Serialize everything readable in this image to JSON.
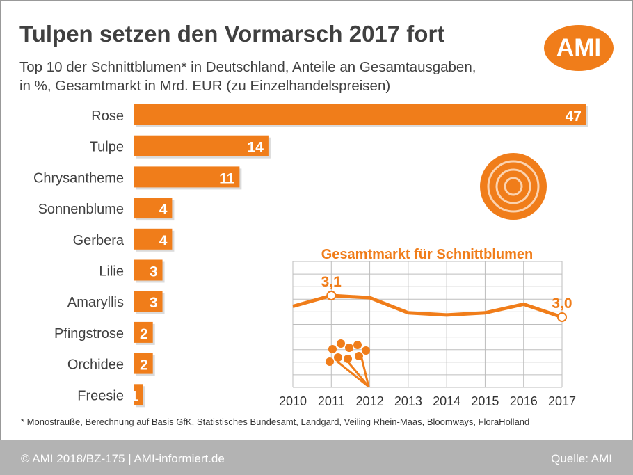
{
  "title": "Tulpen setzen den Vormarsch 2017 fort",
  "subtitle_line1": "Top 10 der Schnittblumen* in Deutschland, Anteile an Gesamtausgaben,",
  "subtitle_line2": "in %, Gesamtmarkt in Mrd. EUR (zu Einzelhandelspreisen)",
  "logo": "AMI",
  "colors": {
    "accent": "#f07d1a",
    "grid": "#bdbdbd",
    "text": "#404040"
  },
  "chart_data": [
    {
      "type": "bar",
      "orientation": "horizontal",
      "categories": [
        "Rose",
        "Tulpe",
        "Chrysantheme",
        "Sonnenblume",
        "Gerbera",
        "Lilie",
        "Amaryllis",
        "Pfingstrose",
        "Orchidee",
        "Freesie"
      ],
      "values": [
        47,
        14,
        11,
        4,
        4,
        3,
        3,
        2,
        2,
        1
      ],
      "data_labels": [
        "47",
        "14",
        "11",
        "4",
        "4",
        "3",
        "3",
        "2",
        "2",
        "1"
      ]
    },
    {
      "type": "line",
      "title": "Gesamtmarkt für Schnittblumen",
      "x": [
        "2010",
        "2011",
        "2012",
        "2013",
        "2014",
        "2015",
        "2016",
        "2017"
      ],
      "values": [
        3.05,
        3.1,
        3.09,
        3.02,
        3.01,
        3.02,
        3.06,
        3.0
      ],
      "annotations": [
        {
          "x": "2011",
          "label": "3,1"
        },
        {
          "x": "2017",
          "label": "3,0"
        }
      ],
      "grid": true
    }
  ],
  "footnote": "* Monosträuße, Berechnung auf Basis GfK, Statistisches Bundesamt, Landgard, Veiling Rhein-Maas, Bloomways, FloraHolland",
  "footer": {
    "left": "© AMI 2018/BZ-175 | AMI-informiert.de",
    "right": "Quelle: AMI"
  }
}
